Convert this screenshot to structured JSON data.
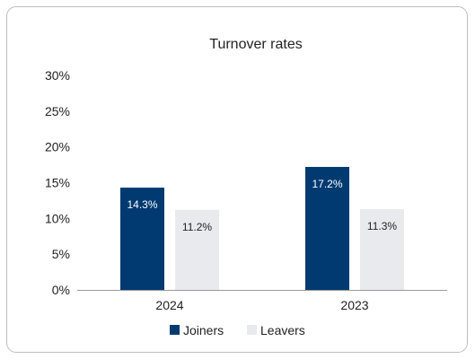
{
  "chart_data": {
    "type": "bar",
    "title": "Turnover rates",
    "categories": [
      "2024",
      "2023"
    ],
    "series": [
      {
        "name": "Joiners",
        "values": [
          14.3,
          17.2
        ],
        "labels": [
          "14.3%",
          "17.2%"
        ],
        "color": "#003a70",
        "label_color": "#ffffff"
      },
      {
        "name": "Leavers",
        "values": [
          11.2,
          11.3
        ],
        "labels": [
          "11.2%",
          "11.3%"
        ],
        "color": "#e8eaed",
        "label_color": "#222222"
      }
    ],
    "ylim": [
      0,
      30
    ],
    "yticks": [
      0,
      5,
      10,
      15,
      20,
      25,
      30
    ],
    "ytick_labels": [
      "0%",
      "5%",
      "10%",
      "15%",
      "20%",
      "25%",
      "30%"
    ],
    "legend_position": "bottom",
    "grid": false,
    "axis_color": "#999999"
  }
}
